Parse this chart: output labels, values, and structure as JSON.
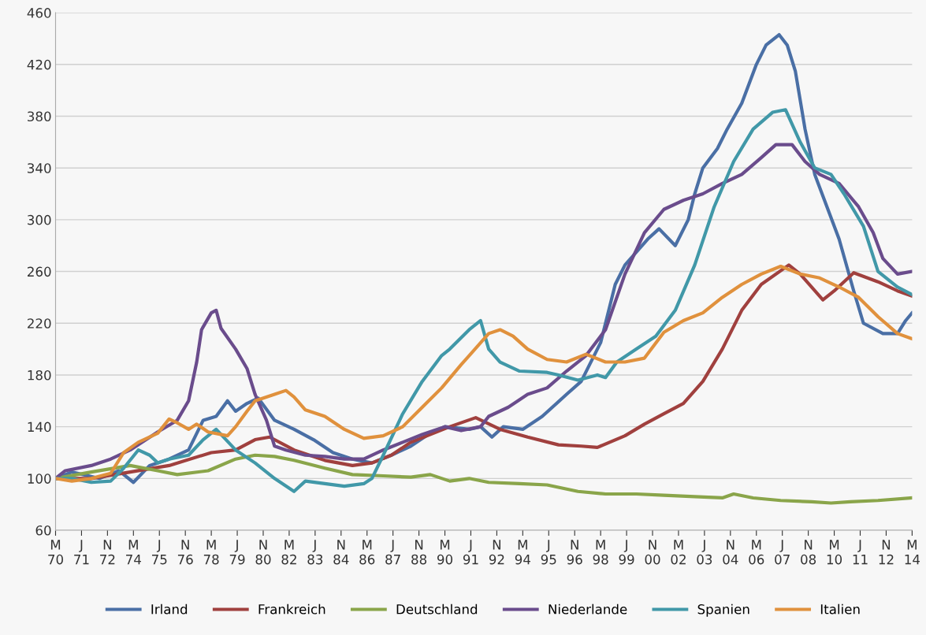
{
  "chart_data": {
    "type": "line",
    "xlim": [
      "1970-03",
      "2014-03"
    ],
    "ylim": [
      60,
      460
    ],
    "yticks": [
      60,
      100,
      140,
      180,
      220,
      260,
      300,
      340,
      380,
      420,
      460
    ],
    "xticks": [
      {
        "value": "1970-03",
        "label": "M\n70"
      },
      {
        "value": "1971-07",
        "label": "J\n71"
      },
      {
        "value": "1972-11",
        "label": "N\n72"
      },
      {
        "value": "1974-03",
        "label": "M\n74"
      },
      {
        "value": "1975-07",
        "label": "J\n75"
      },
      {
        "value": "1976-11",
        "label": "N\n76"
      },
      {
        "value": "1978-03",
        "label": "M\n78"
      },
      {
        "value": "1979-07",
        "label": "J\n79"
      },
      {
        "value": "1980-11",
        "label": "N\n80"
      },
      {
        "value": "1982-03",
        "label": "M\n82"
      },
      {
        "value": "1983-07",
        "label": "J\n83"
      },
      {
        "value": "1984-11",
        "label": "N\n84"
      },
      {
        "value": "1986-03",
        "label": "M\n86"
      },
      {
        "value": "1987-07",
        "label": "J\n87"
      },
      {
        "value": "1988-11",
        "label": "N\n88"
      },
      {
        "value": "1990-03",
        "label": "M\n90"
      },
      {
        "value": "1991-07",
        "label": "J\n91"
      },
      {
        "value": "1992-11",
        "label": "N\n92"
      },
      {
        "value": "1994-03",
        "label": "M\n94"
      },
      {
        "value": "1995-07",
        "label": "J\n95"
      },
      {
        "value": "1996-11",
        "label": "N\n96"
      },
      {
        "value": "1998-03",
        "label": "M\n98"
      },
      {
        "value": "1999-07",
        "label": "J\n99"
      },
      {
        "value": "2000-11",
        "label": "N\n00"
      },
      {
        "value": "2002-03",
        "label": "M\n02"
      },
      {
        "value": "2003-07",
        "label": "J\n03"
      },
      {
        "value": "2004-11",
        "label": "N\n04"
      },
      {
        "value": "2006-03",
        "label": "M\n06"
      },
      {
        "value": "2007-07",
        "label": "J\n07"
      },
      {
        "value": "2008-11",
        "label": "N\n08"
      },
      {
        "value": "2010-03",
        "label": "M\n10"
      },
      {
        "value": "2011-07",
        "label": "J\n11"
      },
      {
        "value": "2012-11",
        "label": "N\n12"
      },
      {
        "value": "2014-03",
        "label": "M\n14"
      }
    ],
    "grid": "y",
    "legend": "bottom",
    "marker": "none",
    "line_style": "solid",
    "series": [
      {
        "name": "Irland",
        "color": "#4a6fa5",
        "x": [
          "1970-03",
          "1971-01",
          "1972-06",
          "1973-06",
          "1974-03",
          "1975-01",
          "1976-01",
          "1977-01",
          "1977-10",
          "1978-06",
          "1979-01",
          "1979-06",
          "1980-01",
          "1980-08",
          "1981-06",
          "1982-06",
          "1983-06",
          "1984-06",
          "1985-06",
          "1986-06",
          "1987-06",
          "1988-06",
          "1989-06",
          "1990-03",
          "1991-06",
          "1992-01",
          "1992-08",
          "1993-03",
          "1994-03",
          "1995-03",
          "1996-06",
          "1997-03",
          "1998-03",
          "1998-12",
          "1999-06",
          "2000-08",
          "2001-03",
          "2002-01",
          "2002-09",
          "2003-01",
          "2003-06",
          "2004-03",
          "2004-09",
          "2005-06",
          "2006-03",
          "2006-09",
          "2007-05",
          "2007-10",
          "2008-03",
          "2008-09",
          "2009-03",
          "2009-09",
          "2010-06",
          "2011-03",
          "2011-09",
          "2012-09",
          "2013-06",
          "2013-11",
          "2014-03"
        ],
        "values": [
          100,
          105,
          100,
          106,
          97,
          110,
          115,
          122,
          145,
          148,
          160,
          152,
          158,
          162,
          145,
          138,
          130,
          120,
          115,
          112,
          118,
          125,
          135,
          140,
          138,
          140,
          132,
          140,
          138,
          148,
          165,
          175,
          205,
          250,
          265,
          285,
          293,
          280,
          300,
          320,
          340,
          355,
          370,
          390,
          420,
          435,
          443,
          435,
          415,
          370,
          335,
          315,
          285,
          245,
          220,
          212,
          212,
          222,
          228
        ]
      },
      {
        "name": "Frankreich",
        "color": "#a0403e",
        "x": [
          "1970-03",
          "1972-01",
          "1974-01",
          "1976-01",
          "1978-03",
          "1979-06",
          "1980-06",
          "1981-03",
          "1982-06",
          "1984-01",
          "1985-06",
          "1986-06",
          "1987-06",
          "1988-06",
          "1990-06",
          "1991-10",
          "1993-01",
          "1994-06",
          "1996-01",
          "1997-03",
          "1998-01",
          "1999-06",
          "2000-06",
          "2001-06",
          "2002-06",
          "2003-06",
          "2004-06",
          "2005-06",
          "2006-06",
          "2007-11",
          "2008-06",
          "2009-08",
          "2010-03",
          "2011-03",
          "2012-06",
          "2013-06",
          "2014-03"
        ],
        "values": [
          100,
          100,
          105,
          110,
          120,
          122,
          130,
          132,
          122,
          114,
          110,
          112,
          118,
          128,
          140,
          147,
          138,
          132,
          126,
          125,
          124,
          133,
          142,
          150,
          158,
          175,
          200,
          230,
          250,
          265,
          258,
          238,
          245,
          259,
          252,
          245,
          241
        ]
      },
      {
        "name": "Deutschland",
        "color": "#8aa54a",
        "x": [
          "1970-03",
          "1972-01",
          "1974-01",
          "1975-06",
          "1976-06",
          "1978-01",
          "1979-06",
          "1980-06",
          "1981-06",
          "1982-06",
          "1984-01",
          "1985-06",
          "1987-01",
          "1988-06",
          "1989-06",
          "1990-06",
          "1991-06",
          "1992-06",
          "1994-01",
          "1995-06",
          "1997-01",
          "1998-06",
          "2000-01",
          "2001-06",
          "2003-01",
          "2004-06",
          "2005-01",
          "2006-01",
          "2007-06",
          "2009-01",
          "2010-01",
          "2011-01",
          "2012-06",
          "2014-03"
        ],
        "values": [
          100,
          105,
          110,
          106,
          103,
          106,
          115,
          118,
          117,
          114,
          108,
          103,
          102,
          101,
          103,
          98,
          100,
          97,
          96,
          95,
          90,
          88,
          88,
          87,
          86,
          85,
          88,
          85,
          83,
          82,
          81,
          82,
          83,
          85
        ]
      },
      {
        "name": "Niederlande",
        "color": "#6a4c8c",
        "x": [
          "1970-03",
          "1970-09",
          "1972-01",
          "1973-01",
          "1974-01",
          "1975-06",
          "1976-06",
          "1977-01",
          "1977-06",
          "1977-09",
          "1978-03",
          "1978-06",
          "1978-09",
          "1979-06",
          "1980-01",
          "1980-06",
          "1981-01",
          "1981-06",
          "1982-01",
          "1983-01",
          "1984-01",
          "1985-01",
          "1986-01",
          "1987-01",
          "1988-01",
          "1989-01",
          "1990-03",
          "1991-01",
          "1992-01",
          "1992-06",
          "1993-06",
          "1994-06",
          "1995-06",
          "1996-06",
          "1997-06",
          "1998-06",
          "1999-06",
          "2000-06",
          "2001-06",
          "2002-06",
          "2003-06",
          "2004-06",
          "2005-06",
          "2006-06",
          "2007-03",
          "2008-01",
          "2008-09",
          "2009-06",
          "2010-06",
          "2011-06",
          "2012-03",
          "2012-09",
          "2013-06",
          "2014-03"
        ],
        "values": [
          100,
          106,
          110,
          115,
          122,
          136,
          145,
          160,
          190,
          215,
          228,
          230,
          216,
          200,
          185,
          165,
          145,
          125,
          122,
          118,
          117,
          115,
          115,
          122,
          128,
          134,
          140,
          137,
          140,
          148,
          155,
          165,
          170,
          183,
          195,
          215,
          258,
          290,
          308,
          315,
          320,
          328,
          335,
          348,
          358,
          358,
          345,
          335,
          328,
          310,
          290,
          270,
          258,
          260
        ]
      },
      {
        "name": "Spanien",
        "color": "#4198a8",
        "x": [
          "1970-03",
          "1971-01",
          "1972-01",
          "1973-01",
          "1973-09",
          "1974-06",
          "1975-01",
          "1975-06",
          "1976-01",
          "1977-01",
          "1977-10",
          "1978-06",
          "1979-06",
          "1980-06",
          "1981-06",
          "1982-06",
          "1983-01",
          "1984-01",
          "1985-01",
          "1986-01",
          "1986-06",
          "1987-01",
          "1988-01",
          "1989-01",
          "1990-01",
          "1990-06",
          "1991-06",
          "1992-01",
          "1992-06",
          "1993-01",
          "1994-01",
          "1995-06",
          "1996-01",
          "1997-01",
          "1998-01",
          "1998-06",
          "1999-01",
          "2000-01",
          "2001-01",
          "2002-01",
          "2003-01",
          "2004-01",
          "2005-01",
          "2006-01",
          "2007-01",
          "2007-09",
          "2008-06",
          "2009-03",
          "2010-01",
          "2010-09",
          "2011-09",
          "2012-06",
          "2013-06",
          "2014-03"
        ],
        "values": [
          100,
          100,
          97,
          98,
          108,
          122,
          118,
          112,
          115,
          118,
          130,
          138,
          122,
          112,
          100,
          90,
          98,
          96,
          94,
          96,
          100,
          118,
          150,
          175,
          195,
          200,
          215,
          222,
          200,
          190,
          183,
          182,
          180,
          176,
          180,
          178,
          190,
          200,
          210,
          230,
          265,
          310,
          345,
          370,
          383,
          385,
          360,
          340,
          335,
          320,
          295,
          260,
          248,
          242
        ]
      },
      {
        "name": "Italien",
        "color": "#e0913d",
        "x": [
          "1970-03",
          "1971-01",
          "1972-01",
          "1973-01",
          "1973-09",
          "1974-06",
          "1975-06",
          "1976-01",
          "1976-06",
          "1977-01",
          "1977-06",
          "1978-01",
          "1979-01",
          "1979-06",
          "1980-01",
          "1980-06",
          "1981-06",
          "1982-01",
          "1982-06",
          "1983-01",
          "1984-01",
          "1985-01",
          "1986-01",
          "1987-01",
          "1988-01",
          "1989-01",
          "1990-01",
          "1991-01",
          "1991-06",
          "1992-06",
          "1993-01",
          "1993-09",
          "1994-06",
          "1995-06",
          "1996-06",
          "1997-06",
          "1998-06",
          "1999-06",
          "2000-06",
          "2001-06",
          "2002-06",
          "2003-06",
          "2004-06",
          "2005-06",
          "2006-06",
          "2007-06",
          "2008-06",
          "2009-06",
          "2010-06",
          "2011-06",
          "2012-06",
          "2013-06",
          "2014-03"
        ],
        "values": [
          100,
          98,
          100,
          104,
          120,
          128,
          135,
          146,
          143,
          138,
          142,
          136,
          133,
          140,
          152,
          160,
          165,
          168,
          163,
          153,
          148,
          138,
          131,
          133,
          140,
          155,
          170,
          188,
          195,
          212,
          215,
          210,
          200,
          192,
          190,
          196,
          190,
          190,
          193,
          213,
          222,
          228,
          240,
          250,
          258,
          264,
          258,
          255,
          248,
          240,
          225,
          212,
          208
        ]
      }
    ]
  }
}
